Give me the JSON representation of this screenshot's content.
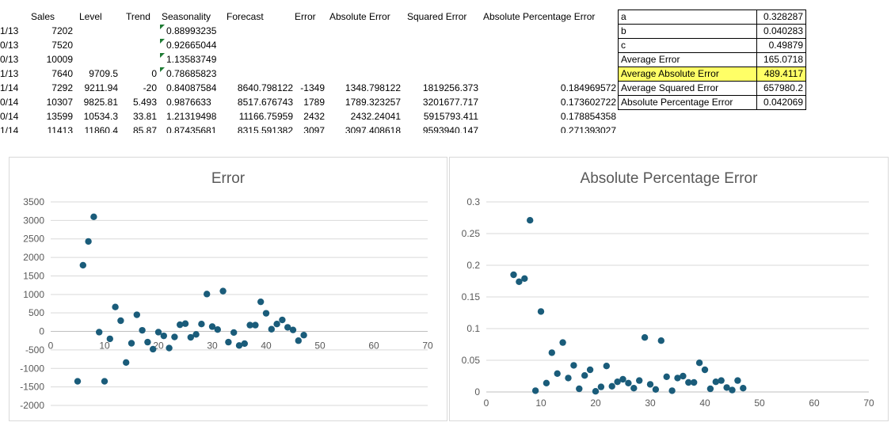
{
  "sheet": {
    "headers": [
      "Sales",
      "Level",
      "Trend",
      "Seasonality",
      "Forecast",
      "Error",
      "Absolute Error",
      "Squared Error",
      "Absolute Percentage Error"
    ],
    "rows": [
      {
        "date": "1/13",
        "sales": "7202",
        "level": "",
        "trend": "",
        "season": "0.88993235",
        "forecast": "",
        "error": "",
        "abs_err": "",
        "sq_err": "",
        "ape": "",
        "flag": true
      },
      {
        "date": "0/13",
        "sales": "7520",
        "level": "",
        "trend": "",
        "season": "0.92665044",
        "forecast": "",
        "error": "",
        "abs_err": "",
        "sq_err": "",
        "ape": "",
        "flag": true
      },
      {
        "date": "0/13",
        "sales": "10009",
        "level": "",
        "trend": "",
        "season": "1.13583749",
        "forecast": "",
        "error": "",
        "abs_err": "",
        "sq_err": "",
        "ape": "",
        "flag": true
      },
      {
        "date": "1/13",
        "sales": "7640",
        "level": "9709.5",
        "trend": "0",
        "season": "0.78685823",
        "forecast": "",
        "error": "",
        "abs_err": "",
        "sq_err": "",
        "ape": "",
        "flag": true
      },
      {
        "date": "1/14",
        "sales": "7292",
        "level": "9211.94",
        "trend": "-20",
        "season": "0.84087584",
        "forecast": "8640.798122",
        "error": "-1349",
        "abs_err": "1348.798122",
        "sq_err": "1819256.373",
        "ape": "0.184969572",
        "flag": false
      },
      {
        "date": "0/14",
        "sales": "10307",
        "level": "9825.81",
        "trend": "5.493",
        "season": "0.9876633",
        "forecast": "8517.676743",
        "error": "1789",
        "abs_err": "1789.323257",
        "sq_err": "3201677.717",
        "ape": "0.173602722",
        "flag": false
      },
      {
        "date": "0/14",
        "sales": "13599",
        "level": "10534.3",
        "trend": "33.81",
        "season": "1.21319498",
        "forecast": "11166.75959",
        "error": "2432",
        "abs_err": "2432.24041",
        "sq_err": "5915793.411",
        "ape": "0.178854358",
        "flag": false
      },
      {
        "date": "1/14",
        "sales": "11413",
        "level": "11860.4",
        "trend": "85.87",
        "season": "0.87435681",
        "forecast": "8315.591382",
        "error": "3097",
        "abs_err": "3097.408618",
        "sq_err": "9593940.147",
        "ape": "0.271393027",
        "flag": false
      }
    ]
  },
  "params": [
    {
      "label": "a",
      "value": "0.328287",
      "highlight": false
    },
    {
      "label": "b",
      "value": "0.040283",
      "highlight": false
    },
    {
      "label": "c",
      "value": "0.49879",
      "highlight": false
    },
    {
      "label": "Average Error",
      "value": "165.0718",
      "highlight": false
    },
    {
      "label": "Average Absolute Error",
      "value": "489.4117",
      "highlight": true
    },
    {
      "label": "Average Squared Error",
      "value": "657980.2",
      "highlight": false
    },
    {
      "label": "Absolute Percentage Error",
      "value": "0.042069",
      "highlight": false
    }
  ],
  "colors": {
    "marker": "#1a5c7a",
    "grid": "#d9d9d9",
    "highlight": "#ffff66",
    "flag": "#1e7b34"
  },
  "chart_data": [
    {
      "type": "scatter",
      "title": "Error",
      "xlim": [
        0,
        70
      ],
      "ylim": [
        -2000,
        3500
      ],
      "x_ticks": [
        0,
        10,
        20,
        30,
        40,
        50,
        60,
        70
      ],
      "y_ticks": [
        -2000,
        -1500,
        -1000,
        -500,
        0,
        500,
        1000,
        1500,
        2000,
        2500,
        3000,
        3500
      ],
      "grid": true,
      "points": [
        [
          5,
          -1349
        ],
        [
          6,
          1789
        ],
        [
          7,
          2432
        ],
        [
          8,
          3097
        ],
        [
          9,
          -20
        ],
        [
          10,
          -1349
        ],
        [
          11,
          -200
        ],
        [
          12,
          660
        ],
        [
          13,
          290
        ],
        [
          14,
          -840
        ],
        [
          15,
          -320
        ],
        [
          16,
          450
        ],
        [
          17,
          30
        ],
        [
          18,
          -290
        ],
        [
          19,
          -480
        ],
        [
          20,
          -20
        ],
        [
          21,
          -120
        ],
        [
          22,
          -450
        ],
        [
          23,
          -150
        ],
        [
          24,
          180
        ],
        [
          25,
          210
        ],
        [
          26,
          -160
        ],
        [
          27,
          -80
        ],
        [
          28,
          200
        ],
        [
          29,
          1010
        ],
        [
          30,
          130
        ],
        [
          31,
          50
        ],
        [
          32,
          1090
        ],
        [
          33,
          -290
        ],
        [
          34,
          -30
        ],
        [
          35,
          -380
        ],
        [
          36,
          -330
        ],
        [
          37,
          170
        ],
        [
          38,
          170
        ],
        [
          39,
          800
        ],
        [
          40,
          490
        ],
        [
          41,
          60
        ],
        [
          42,
          200
        ],
        [
          43,
          310
        ],
        [
          44,
          110
        ],
        [
          45,
          40
        ],
        [
          46,
          -250
        ],
        [
          47,
          -100
        ]
      ]
    },
    {
      "type": "scatter",
      "title": "Absolute Percentage Error",
      "xlim": [
        0,
        70
      ],
      "ylim": [
        0,
        0.3
      ],
      "x_ticks": [
        0,
        10,
        20,
        30,
        40,
        50,
        60,
        70
      ],
      "y_ticks": [
        0,
        0.05,
        0.1,
        0.15,
        0.2,
        0.25,
        0.3
      ],
      "grid": true,
      "points": [
        [
          5,
          0.185
        ],
        [
          6,
          0.174
        ],
        [
          7,
          0.179
        ],
        [
          8,
          0.271
        ],
        [
          9,
          0.002
        ],
        [
          10,
          0.127
        ],
        [
          11,
          0.014
        ],
        [
          12,
          0.062
        ],
        [
          13,
          0.029
        ],
        [
          14,
          0.078
        ],
        [
          15,
          0.022
        ],
        [
          16,
          0.042
        ],
        [
          17,
          0.005
        ],
        [
          18,
          0.026
        ],
        [
          19,
          0.035
        ],
        [
          20,
          0.001
        ],
        [
          21,
          0.008
        ],
        [
          22,
          0.041
        ],
        [
          23,
          0.009
        ],
        [
          24,
          0.016
        ],
        [
          25,
          0.02
        ],
        [
          26,
          0.014
        ],
        [
          27,
          0.006
        ],
        [
          28,
          0.018
        ],
        [
          29,
          0.086
        ],
        [
          30,
          0.012
        ],
        [
          31,
          0.004
        ],
        [
          32,
          0.081
        ],
        [
          33,
          0.024
        ],
        [
          34,
          0.002
        ],
        [
          35,
          0.022
        ],
        [
          36,
          0.025
        ],
        [
          37,
          0.015
        ],
        [
          38,
          0.015
        ],
        [
          39,
          0.046
        ],
        [
          40,
          0.035
        ],
        [
          41,
          0.005
        ],
        [
          42,
          0.016
        ],
        [
          43,
          0.018
        ],
        [
          44,
          0.007
        ],
        [
          45,
          0.003
        ],
        [
          46,
          0.018
        ],
        [
          47,
          0.006
        ]
      ]
    }
  ]
}
